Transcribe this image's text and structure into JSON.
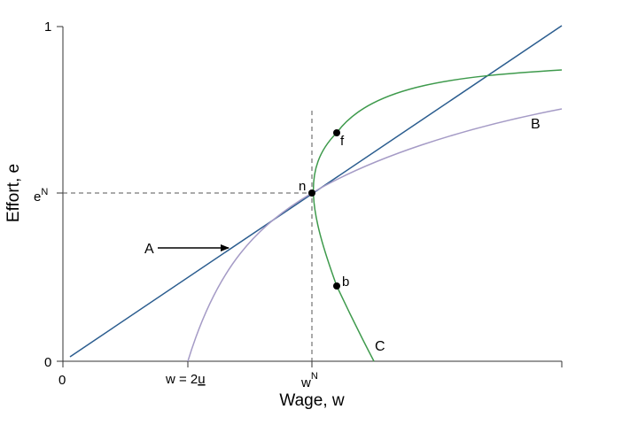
{
  "chart_data": {
    "type": "diagram",
    "title": "",
    "xlabel": "Wage, w",
    "ylabel": "Effort, e",
    "x_ticks": {
      "origin": "0",
      "reservation_wage": {
        "main": "w = 2",
        "underlined": "u"
      },
      "nash_wage": {
        "main": "w",
        "sup": "N"
      }
    },
    "y_ticks": {
      "top": "1",
      "bottom": "0",
      "nash_effort": {
        "main": "e",
        "sup": "N"
      }
    },
    "curves": [
      {
        "name": "linear-ray",
        "color": "#2b5d8f"
      },
      {
        "name": "B",
        "label": "B",
        "color": "#a59bc6"
      },
      {
        "name": "C",
        "label": "C",
        "color": "#3e9a4c"
      }
    ],
    "points": [
      {
        "label": "n"
      },
      {
        "label": "f"
      },
      {
        "label": "b"
      }
    ],
    "annotations": [
      {
        "label": "A",
        "kind": "arrow"
      }
    ]
  }
}
